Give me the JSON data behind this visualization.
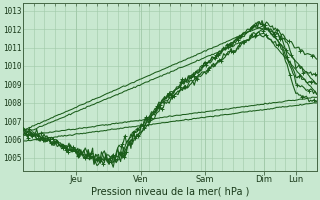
{
  "xlabel": "Pression niveau de la mer( hPa )",
  "bg_color": "#c8e8d0",
  "grid_color": "#a0c8a8",
  "line_color": "#1a5c1a",
  "ylim": [
    1004.3,
    1013.4
  ],
  "yticks": [
    1005,
    1006,
    1007,
    1008,
    1009,
    1010,
    1011,
    1012,
    1013
  ],
  "day_labels": [
    "Jeu",
    "Ven",
    "Sam",
    "Dim",
    "Lun"
  ],
  "day_positions": [
    0.18,
    0.4,
    0.62,
    0.82,
    0.93
  ],
  "day_vlines": [
    0.0,
    0.18,
    0.4,
    0.62,
    0.82,
    0.93,
    1.0
  ],
  "xlim": [
    0.0,
    1.0
  ],
  "n_fine_grid": 28
}
